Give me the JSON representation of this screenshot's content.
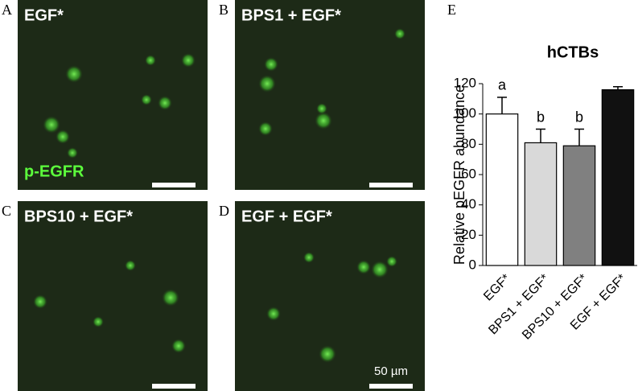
{
  "panels": [
    {
      "letter": "A",
      "label": "EGF*",
      "stain": "p-EGFR"
    },
    {
      "letter": "B",
      "label": "BPS1 + EGF*"
    },
    {
      "letter": "C",
      "label": "BPS10 + EGF*"
    },
    {
      "letter": "D",
      "label": "EGF + EGF*",
      "scale": "50 µm"
    }
  ],
  "chart_data": {
    "type": "bar",
    "letter": "E",
    "title": "hCTBs",
    "y_label": "Relative pEGFR abundance",
    "categories": [
      "EGF*",
      "BPS1 + EGF*",
      "BPS10 + EGF*",
      "EGF + EGF*"
    ],
    "values": [
      100,
      81,
      79,
      116
    ],
    "errors": [
      11,
      9,
      11,
      2
    ],
    "annotations": [
      "a",
      "b",
      "b"
    ],
    "colors": [
      "#ffffff",
      "#d9d9d9",
      "#808080",
      "#111111"
    ],
    "ylim": [
      0,
      120
    ],
    "yticks": [
      0,
      20,
      40,
      60,
      80,
      100,
      120
    ]
  }
}
